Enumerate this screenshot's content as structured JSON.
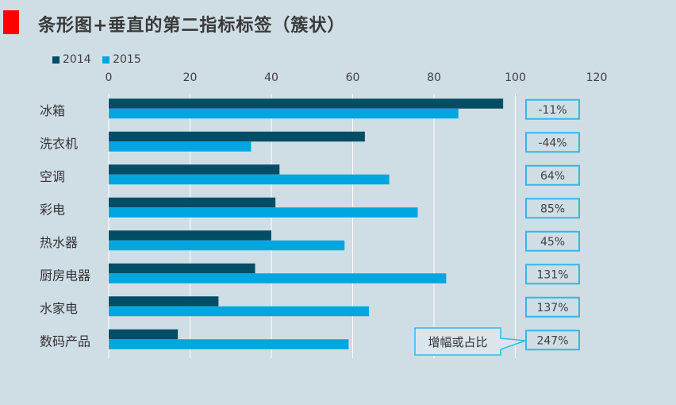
{
  "title": "条形图+垂直的第二指标标签（簇状）",
  "colors": {
    "background": "#cfdde5",
    "accent": "#ff0000",
    "series_2014": "#004d66",
    "series_2015": "#00a6e0",
    "label_border": "#33b8e6",
    "gridline": "#ffffff"
  },
  "chart_data": {
    "type": "bar",
    "orientation": "horizontal",
    "title": "条形图+垂直的第二指标标签（簇状）",
    "categories": [
      "冰箱",
      "洗衣机",
      "空调",
      "彩电",
      "热水器",
      "厨房电器",
      "水家电",
      "数码产品"
    ],
    "series": [
      {
        "name": "2014",
        "values": [
          97,
          63,
          42,
          41,
          40,
          36,
          27,
          17
        ]
      },
      {
        "name": "2015",
        "values": [
          86,
          35,
          69,
          76,
          58,
          83,
          64,
          59
        ]
      }
    ],
    "xlim": [
      0,
      120
    ],
    "xticks": [
      "0",
      "20",
      "40",
      "60",
      "80",
      "100",
      "120"
    ],
    "grid": true,
    "legend_position": "top-left",
    "second_metric": {
      "labels": [
        "-11%",
        "-44%",
        "64%",
        "85%",
        "45%",
        "131%",
        "137%",
        "247%"
      ]
    },
    "annotation": "增幅或占比"
  }
}
